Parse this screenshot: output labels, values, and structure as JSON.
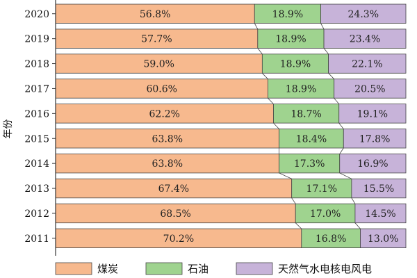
{
  "chart_data": {
    "type": "bar",
    "orientation": "horizontal",
    "stacked": true,
    "normalized": true,
    "ylabel": "年份",
    "categories": [
      "2020",
      "2019",
      "2018",
      "2017",
      "2016",
      "2015",
      "2014",
      "2013",
      "2012",
      "2011"
    ],
    "series": [
      {
        "name": "煤炭",
        "color": "#f7b98e",
        "values": [
          56.8,
          57.7,
          59.0,
          60.6,
          62.2,
          63.8,
          63.8,
          67.4,
          68.5,
          70.2
        ],
        "labels": [
          "56.8%",
          "57.7%",
          "59.0%",
          "60.6%",
          "62.2%",
          "63.8%",
          "63.8%",
          "67.4%",
          "68.5%",
          "70.2%"
        ]
      },
      {
        "name": "石油",
        "color": "#9fd38f",
        "values": [
          18.9,
          18.9,
          18.9,
          18.9,
          18.7,
          18.4,
          17.3,
          17.1,
          17.0,
          16.8
        ],
        "labels": [
          "18.9%",
          "18.9%",
          "18.9%",
          "18.9%",
          "18.7%",
          "18.4%",
          "17.3%",
          "17.1%",
          "17.0%",
          "16.8%"
        ]
      },
      {
        "name": "天然气水电核电风电",
        "color": "#c7b3d9",
        "values": [
          24.3,
          23.4,
          22.1,
          20.5,
          19.1,
          17.8,
          16.9,
          15.5,
          14.5,
          13.0
        ],
        "labels": [
          "24.3%",
          "23.4%",
          "22.1%",
          "20.5%",
          "19.1%",
          "17.8%",
          "16.9%",
          "15.5%",
          "14.5%",
          "13.0%"
        ]
      }
    ],
    "xlim": [
      0,
      100
    ],
    "legend_position": "bottom",
    "grid": false
  }
}
